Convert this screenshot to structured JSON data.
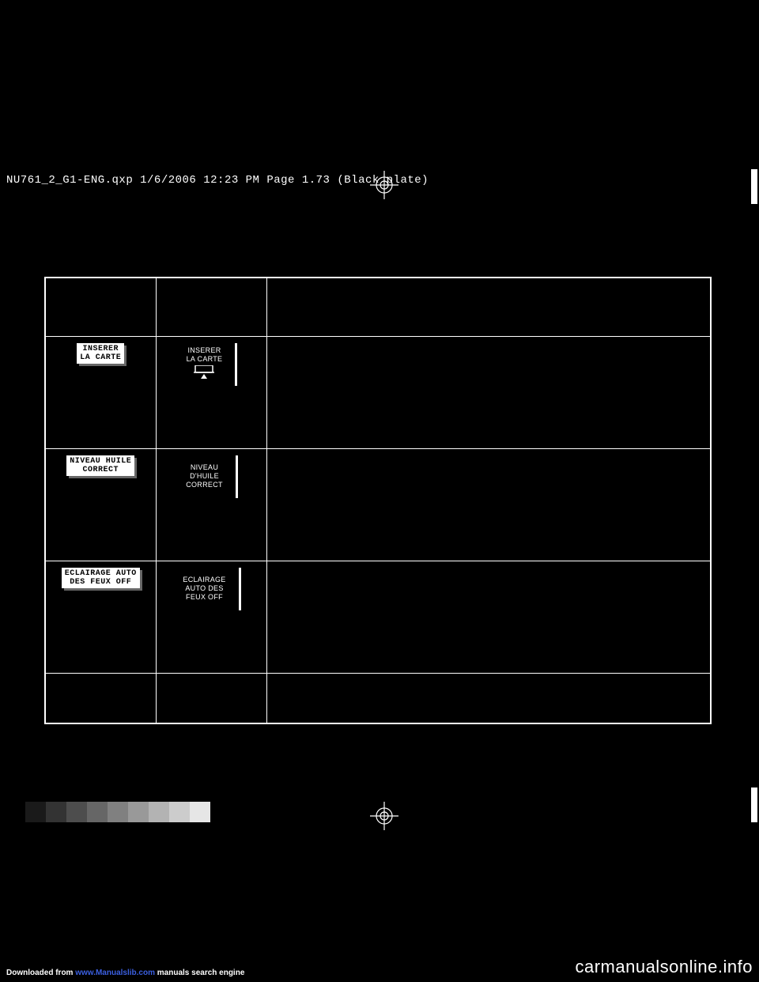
{
  "header": "NU761_2_G1-ENG.qxp  1/6/2006  12:23 PM  Page 1.73    (Black plate)",
  "table": {
    "rows": [
      {
        "colA": {
          "line1": "INSERER",
          "line2": "LA CARTE"
        },
        "colB": {
          "line1": "INSERER",
          "line2": "LA CARTE",
          "hasCardIcon": true
        }
      },
      {
        "colA": {
          "line1": "NIVEAU HUILE",
          "line2": "CORRECT"
        },
        "colB": {
          "line1": "NIVEAU",
          "line2": "D'HUILE",
          "line3": "CORRECT"
        }
      },
      {
        "colA": {
          "line1": "ECLAIRAGE AUTO",
          "line2": "DES FEUX OFF"
        },
        "colB": {
          "line1": "ECLAIRAGE",
          "line2": "AUTO DES",
          "line3": "FEUX OFF"
        }
      }
    ]
  },
  "greyscale": [
    "#000000",
    "#1a1a1a",
    "#333333",
    "#4d4d4d",
    "#666666",
    "#808080",
    "#999999",
    "#b3b3b3",
    "#cccccc",
    "#e6e6e6"
  ],
  "footer": {
    "prefix": "Downloaded from ",
    "link": "www.Manualslib.com",
    "suffix": " manuals search engine"
  },
  "watermark": "carmanualsonline.info"
}
